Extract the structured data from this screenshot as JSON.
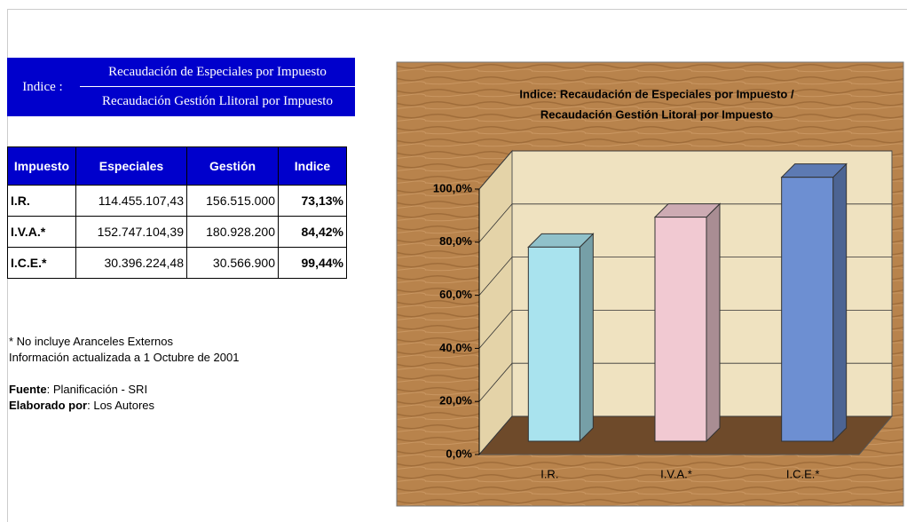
{
  "header": {
    "label": "Indice :",
    "numerator": "Recaudación de Especiales por Impuesto",
    "denominator": "Recaudación Gestión Llitoral por Impuesto"
  },
  "table": {
    "columns": [
      "Impuesto",
      "Especiales",
      "Gestión",
      "Indice"
    ],
    "rows": [
      [
        "I.R.",
        "114.455.107,43",
        "156.515.000",
        "73,13%"
      ],
      [
        "I.V.A.*",
        "152.747.104,39",
        "180.928.200",
        "84,42%"
      ],
      [
        "I.C.E.*",
        "30.396.224,48",
        "30.566.900",
        "99,44%"
      ]
    ]
  },
  "notes": [
    "* No incluye Aranceles Externos",
    "Información actualizada a 1 Octubre de 2001"
  ],
  "source": {
    "label": "Fuente",
    "text": ": Planificación - SRI"
  },
  "author": {
    "label": "Elaborado por",
    "text": ": Los Autores"
  },
  "chart_data": {
    "type": "bar3d",
    "title": [
      "Indice: Recaudación de Especiales por Impuesto /",
      "Recaudación Gestión Litoral por Impuesto"
    ],
    "categories": [
      "I.R.",
      "I.V.A.*",
      "I.C.E.*"
    ],
    "values": [
      73.13,
      84.42,
      99.44
    ],
    "colors": [
      "#a9e3ee",
      "#f1c9d2",
      "#6d8fd2"
    ],
    "ylim": [
      0,
      100
    ],
    "yticks": [
      {
        "value": 0,
        "label": "0,0%"
      },
      {
        "value": 20,
        "label": "20,0%"
      },
      {
        "value": 40,
        "label": "40,0%"
      },
      {
        "value": 60,
        "label": "60,0%"
      },
      {
        "value": 80,
        "label": "80,0%"
      },
      {
        "value": 100,
        "label": "100,0%"
      }
    ],
    "grid": true
  }
}
